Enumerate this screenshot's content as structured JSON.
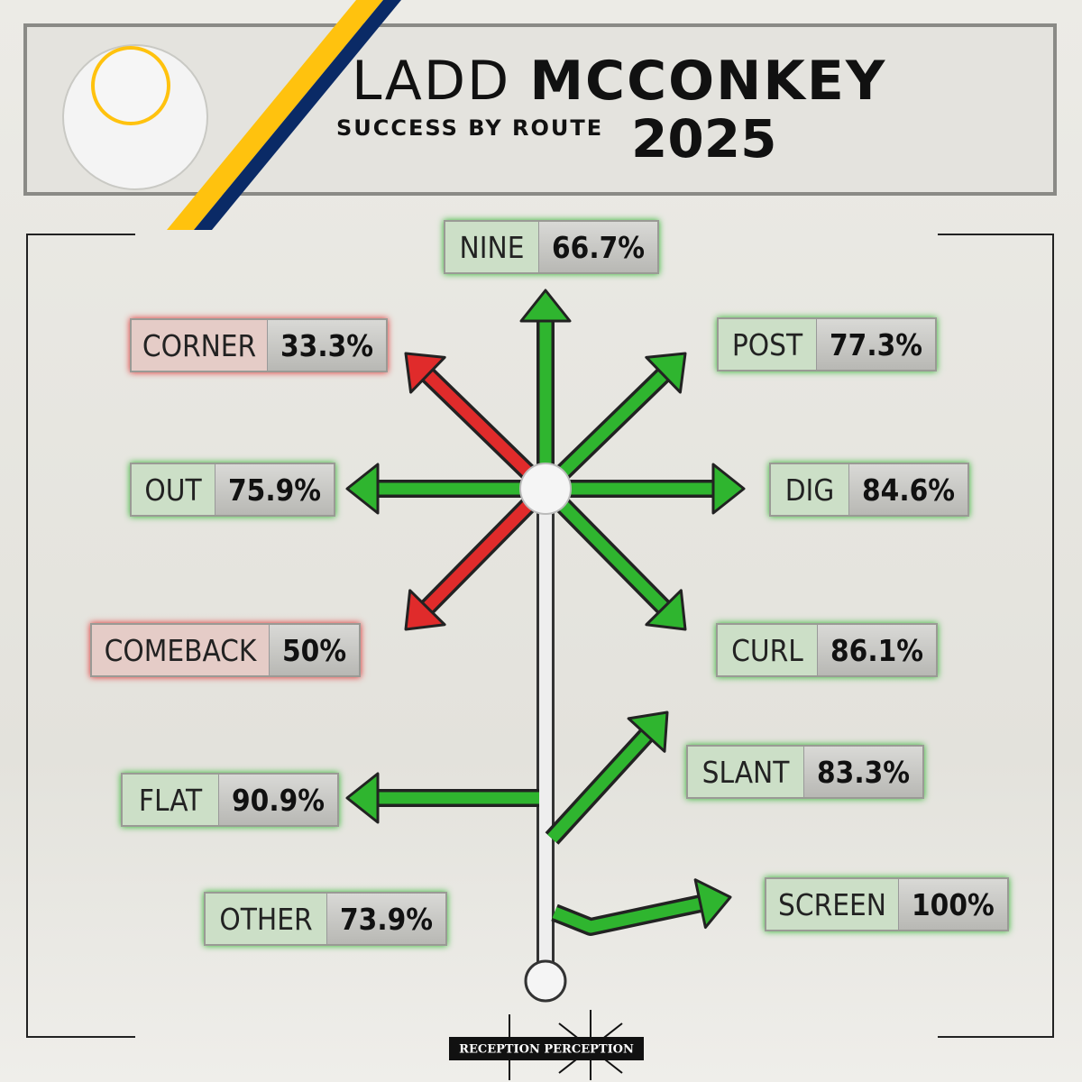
{
  "header": {
    "first_name": "LADD",
    "last_name": "MCCONKEY",
    "subtitle": "SUCCESS BY ROUTE",
    "year": "2025"
  },
  "routes": [
    {
      "name": "NINE",
      "value": "66.7%",
      "color": "#2fb52f"
    },
    {
      "name": "CORNER",
      "value": "33.3%",
      "color": "#e02b2b"
    },
    {
      "name": "POST",
      "value": "77.3%",
      "color": "#2fb52f"
    },
    {
      "name": "OUT",
      "value": "75.9%",
      "color": "#2fb52f"
    },
    {
      "name": "DIG",
      "value": "84.6%",
      "color": "#2fb52f"
    },
    {
      "name": "COMEBACK",
      "value": "50%",
      "color": "#e02b2b"
    },
    {
      "name": "CURL",
      "value": "86.1%",
      "color": "#2fb52f"
    },
    {
      "name": "SLANT",
      "value": "83.3%",
      "color": "#2fb52f"
    },
    {
      "name": "FLAT",
      "value": "90.9%",
      "color": "#2fb52f"
    },
    {
      "name": "OTHER",
      "value": "73.9%",
      "color": "#2fb52f"
    },
    {
      "name": "SCREEN",
      "value": "100%",
      "color": "#2fb52f"
    }
  ],
  "footer": "RECEPTION PERCEPTION"
}
